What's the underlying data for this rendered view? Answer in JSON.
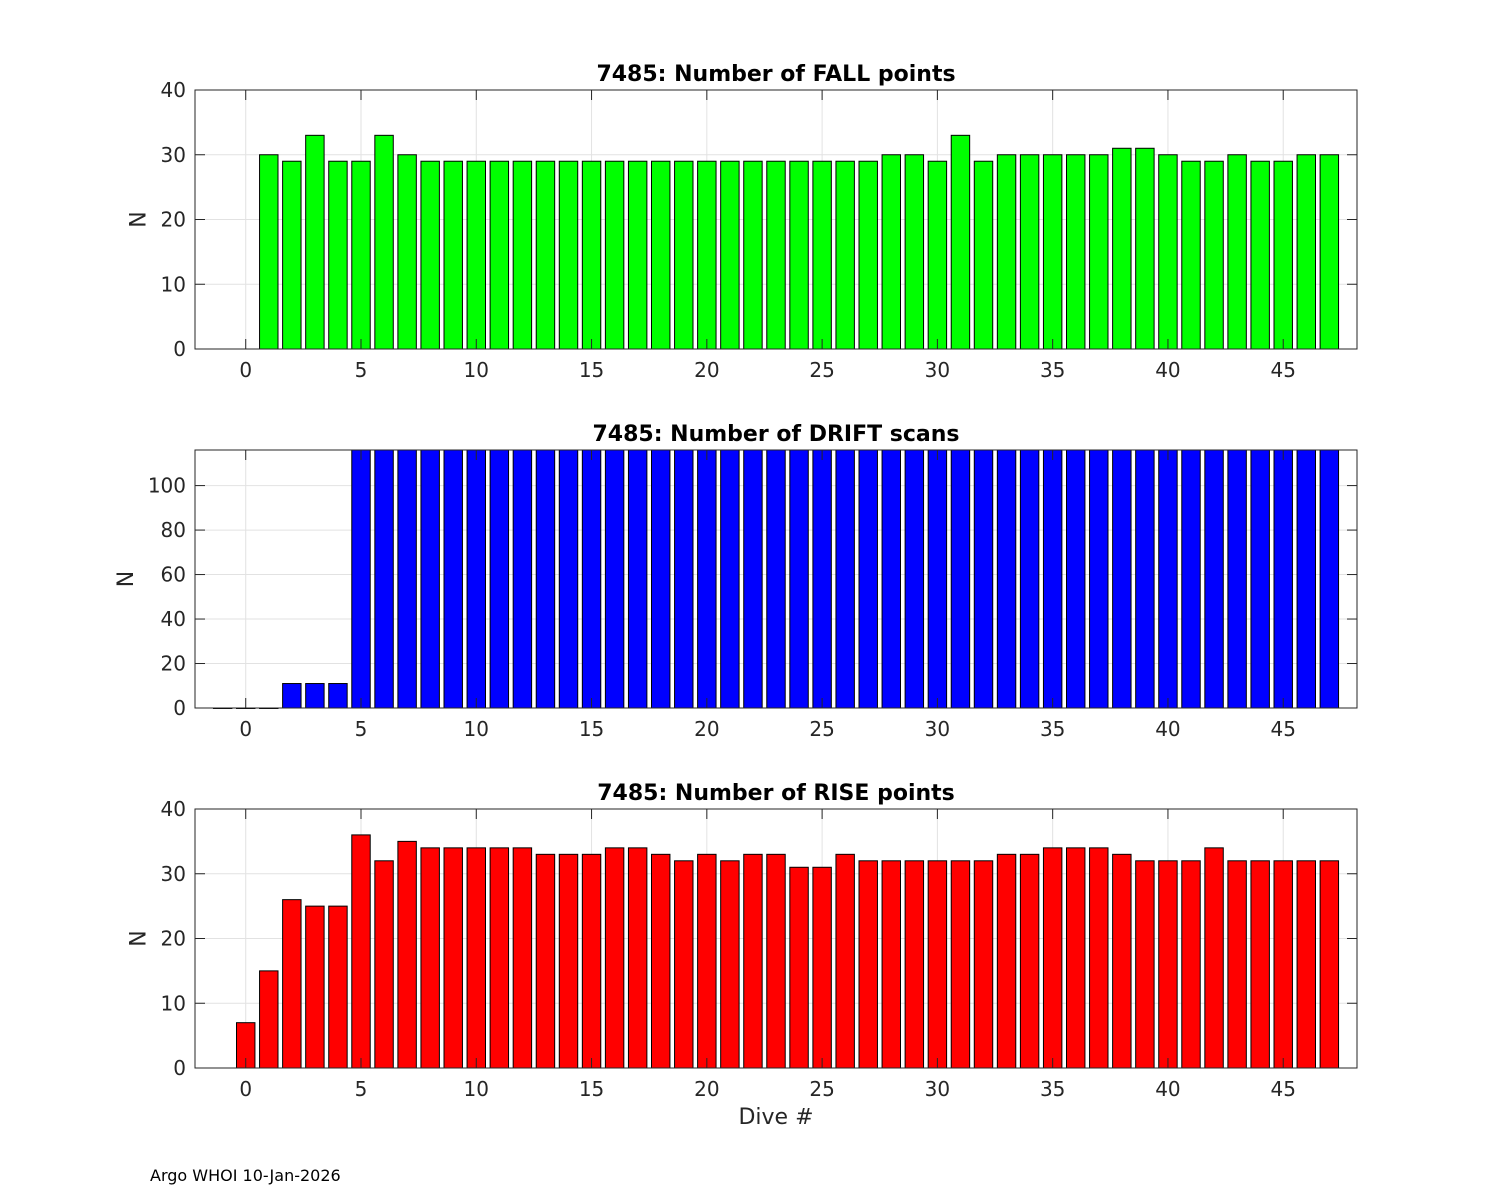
{
  "footer": "Argo WHOI 10-Jan-2026",
  "colors": {
    "fall": "#00ff00",
    "drift": "#0000ff",
    "rise": "#ff0000",
    "edge": "#000000",
    "grid": "#e2e2e2"
  },
  "chart_data": [
    {
      "type": "bar",
      "title": "7485: Number of FALL points",
      "xlabel": "",
      "ylabel": "N",
      "xlim": [
        -2.2,
        48.2
      ],
      "ylim": [
        0,
        40
      ],
      "xticks": [
        0,
        5,
        10,
        15,
        20,
        25,
        30,
        35,
        40,
        45
      ],
      "yticks": [
        0,
        10,
        20,
        30,
        40
      ],
      "grid": true,
      "x": [
        1,
        2,
        3,
        4,
        5,
        6,
        7,
        8,
        9,
        10,
        11,
        12,
        13,
        14,
        15,
        16,
        17,
        18,
        19,
        20,
        21,
        22,
        23,
        24,
        25,
        26,
        27,
        28,
        29,
        30,
        31,
        32,
        33,
        34,
        35,
        36,
        37,
        38,
        39,
        40,
        41,
        42,
        43,
        44,
        45,
        46,
        47
      ],
      "values": [
        30,
        29,
        33,
        29,
        29,
        33,
        30,
        29,
        29,
        29,
        29,
        29,
        29,
        29,
        29,
        29,
        29,
        29,
        29,
        29,
        29,
        29,
        29,
        29,
        29,
        29,
        29,
        30,
        30,
        29,
        33,
        29,
        30,
        30,
        30,
        30,
        30,
        31,
        31,
        30,
        29,
        29,
        30,
        29,
        29,
        30,
        30
      ],
      "color": "#00ff00"
    },
    {
      "type": "bar",
      "title": "7485: Number of DRIFT scans",
      "xlabel": "",
      "ylabel": "N",
      "xlim": [
        -2.2,
        48.2
      ],
      "ylim": [
        0,
        116
      ],
      "xticks": [
        0,
        5,
        10,
        15,
        20,
        25,
        30,
        35,
        40,
        45
      ],
      "yticks": [
        0,
        20,
        40,
        60,
        80,
        100
      ],
      "grid": true,
      "x": [
        -1,
        0,
        1,
        2,
        3,
        4,
        5,
        6,
        7,
        8,
        9,
        10,
        11,
        12,
        13,
        14,
        15,
        16,
        17,
        18,
        19,
        20,
        21,
        22,
        23,
        24,
        25,
        26,
        27,
        28,
        29,
        30,
        31,
        32,
        33,
        34,
        35,
        36,
        37,
        38,
        39,
        40,
        41,
        42,
        43,
        44,
        45,
        46,
        47
      ],
      "values": [
        0,
        0,
        0,
        11,
        11,
        11,
        116,
        116,
        116,
        116,
        116,
        116,
        116,
        116,
        116,
        116,
        116,
        116,
        116,
        116,
        116,
        116,
        116,
        116,
        116,
        116,
        116,
        116,
        116,
        116,
        116,
        116,
        116,
        116,
        116,
        116,
        116,
        116,
        116,
        116,
        116,
        116,
        116,
        116,
        116,
        116,
        116,
        116,
        116
      ],
      "color": "#0000ff"
    },
    {
      "type": "bar",
      "title": "7485: Number of RISE points",
      "xlabel": "Dive #",
      "ylabel": "N",
      "xlim": [
        -2.2,
        48.2
      ],
      "ylim": [
        0,
        40
      ],
      "xticks": [
        0,
        5,
        10,
        15,
        20,
        25,
        30,
        35,
        40,
        45
      ],
      "yticks": [
        0,
        10,
        20,
        30,
        40
      ],
      "grid": true,
      "x": [
        0,
        1,
        2,
        3,
        4,
        5,
        6,
        7,
        8,
        9,
        10,
        11,
        12,
        13,
        14,
        15,
        16,
        17,
        18,
        19,
        20,
        21,
        22,
        23,
        24,
        25,
        26,
        27,
        28,
        29,
        30,
        31,
        32,
        33,
        34,
        35,
        36,
        37,
        38,
        39,
        40,
        41,
        42,
        43,
        44,
        45,
        46,
        47
      ],
      "values": [
        7,
        15,
        26,
        25,
        25,
        36,
        32,
        35,
        34,
        34,
        34,
        34,
        34,
        33,
        33,
        33,
        34,
        34,
        33,
        32,
        33,
        32,
        33,
        33,
        31,
        31,
        33,
        32,
        32,
        32,
        32,
        32,
        32,
        33,
        33,
        34,
        34,
        34,
        33,
        32,
        32,
        32,
        34,
        32,
        32,
        32,
        32,
        32
      ],
      "color": "#ff0000"
    }
  ]
}
